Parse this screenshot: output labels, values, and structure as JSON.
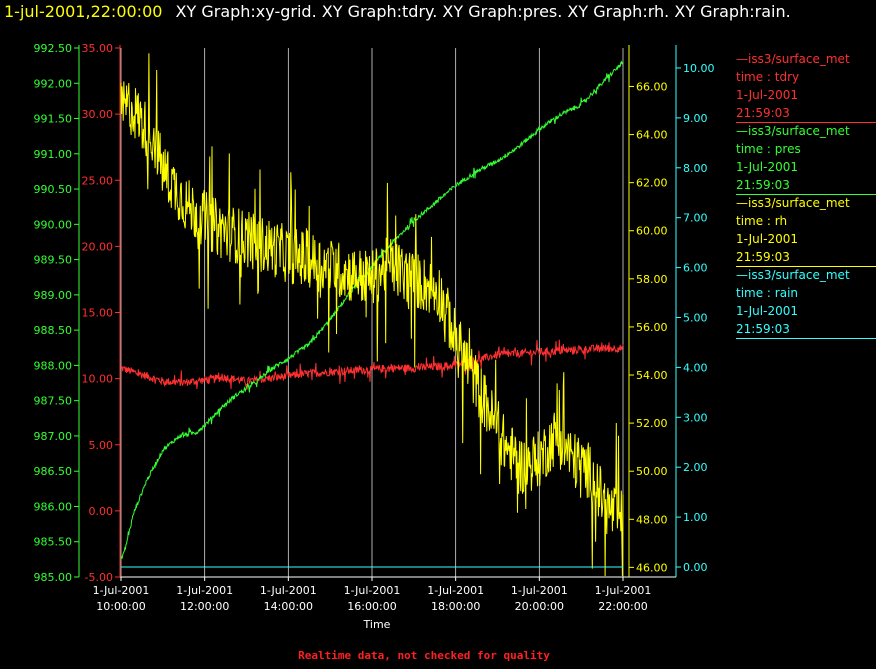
{
  "header": {
    "timestamp": "1-jul-2001,22:00:00",
    "titles": "XY Graph:xy-grid.  XY Graph:tdry.  XY Graph:pres.  XY Graph:rh.  XY Graph:rain."
  },
  "footer": {
    "quality_note": "Realtime data, not checked for quality"
  },
  "colors": {
    "tdry": "#ff3030",
    "pres": "#33ff33",
    "rh": "#ffff00",
    "rain": "#33ffff",
    "grid": "#ffffff"
  },
  "legend": [
    {
      "station": "—iss3/surface_met",
      "label": "time : tdry",
      "date": "1-Jul-2001",
      "time": "21:59:03",
      "color": "#ff3030"
    },
    {
      "station": "—iss3/surface_met",
      "label": "time : pres",
      "date": "1-Jul-2001",
      "time": "21:59:03",
      "color": "#33ff33"
    },
    {
      "station": "—iss3/surface_met",
      "label": "time : rh",
      "date": "1-Jul-2001",
      "time": "21:59:03",
      "color": "#ffff00"
    },
    {
      "station": "—iss3/surface_met",
      "label": "time : rain",
      "date": "1-Jul-2001",
      "time": "21:59:03",
      "color": "#33ffff"
    }
  ],
  "chart_data": {
    "type": "line",
    "xlabel": "Time",
    "x_ticks": [
      {
        "date": "1-Jul-2001",
        "time": "10:00:00",
        "hour": 10
      },
      {
        "date": "1-Jul-2001",
        "time": "12:00:00",
        "hour": 12
      },
      {
        "date": "1-Jul-2001",
        "time": "14:00:00",
        "hour": 14
      },
      {
        "date": "1-Jul-2001",
        "time": "16:00:00",
        "hour": 16
      },
      {
        "date": "1-Jul-2001",
        "time": "18:00:00",
        "hour": 18
      },
      {
        "date": "1-Jul-2001",
        "time": "20:00:00",
        "hour": 20
      },
      {
        "date": "1-Jul-2001",
        "time": "22:00:00",
        "hour": 22
      }
    ],
    "xlim": [
      10,
      22
    ],
    "grid": true,
    "axes": [
      {
        "id": "pres",
        "side": "left",
        "color": "#33ff33",
        "ylim": [
          985.0,
          992.5
        ],
        "ticks": [
          "985.00",
          "985.50",
          "986.00",
          "986.50",
          "987.00",
          "987.50",
          "988.00",
          "988.50",
          "989.00",
          "989.50",
          "990.00",
          "990.50",
          "991.00",
          "991.50",
          "992.00",
          "992.50"
        ]
      },
      {
        "id": "tdry",
        "side": "left",
        "color": "#ff3030",
        "ylim": [
          -5.0,
          35.0
        ],
        "ticks": [
          "-5.00",
          "0.00",
          "5.00",
          "10.00",
          "15.00",
          "20.00",
          "25.00",
          "30.00",
          "35.00"
        ]
      },
      {
        "id": "rh",
        "side": "right",
        "color": "#ffff00",
        "ylim": [
          45.6,
          67.6
        ],
        "ticks": [
          "46.00",
          "48.00",
          "50.00",
          "52.00",
          "54.00",
          "56.00",
          "58.00",
          "60.00",
          "62.00",
          "64.00",
          "66.00"
        ]
      },
      {
        "id": "rain",
        "side": "right",
        "color": "#33ffff",
        "ylim": [
          -0.2,
          10.4
        ],
        "ticks": [
          "0.00",
          "1.00",
          "2.00",
          "3.00",
          "4.00",
          "5.00",
          "6.00",
          "7.00",
          "8.00",
          "9.00",
          "10.00"
        ]
      }
    ],
    "series": [
      {
        "id": "tdry",
        "axis": "tdry",
        "color": "#ff3030",
        "x": [
          10.0,
          10.5,
          11.0,
          11.5,
          12.0,
          12.5,
          13.0,
          13.5,
          14.0,
          14.5,
          15.0,
          15.5,
          16.0,
          16.5,
          17.0,
          17.5,
          18.0,
          18.5,
          19.0,
          19.5,
          20.0,
          20.5,
          21.0,
          21.5,
          22.0
        ],
        "y": [
          10.8,
          10.3,
          9.8,
          9.7,
          9.9,
          10.1,
          9.8,
          10.0,
          10.2,
          10.4,
          10.5,
          10.6,
          10.7,
          10.8,
          10.8,
          10.9,
          11.0,
          11.4,
          11.8,
          11.9,
          12.0,
          12.1,
          12.2,
          12.3,
          12.3
        ],
        "noise": 0.3
      },
      {
        "id": "pres",
        "axis": "pres",
        "color": "#33ff33",
        "x": [
          10.0,
          10.1,
          10.3,
          10.6,
          11.0,
          11.4,
          11.8,
          12.0,
          12.4,
          12.8,
          13.2,
          13.6,
          14.0,
          14.5,
          15.0,
          15.5,
          16.0,
          16.5,
          17.0,
          17.5,
          18.0,
          18.5,
          19.0,
          19.5,
          20.0,
          20.5,
          21.0,
          21.5,
          22.0
        ],
        "y": [
          985.25,
          985.4,
          985.9,
          986.35,
          986.8,
          987.0,
          987.05,
          987.15,
          987.4,
          987.6,
          987.75,
          987.95,
          988.1,
          988.3,
          988.65,
          989.05,
          989.4,
          989.75,
          990.05,
          990.3,
          990.55,
          990.75,
          990.9,
          991.1,
          991.35,
          991.55,
          991.7,
          992.0,
          992.3
        ],
        "noise": 0.03
      },
      {
        "id": "rh",
        "axis": "rh",
        "color": "#ffff00",
        "x": [
          10.0,
          10.2,
          10.4,
          10.6,
          10.8,
          11.0,
          11.3,
          11.6,
          12.0,
          12.4,
          12.8,
          13.2,
          13.6,
          14.0,
          14.5,
          15.0,
          15.5,
          16.0,
          16.4,
          16.8,
          17.2,
          17.6,
          18.0,
          18.4,
          18.8,
          19.2,
          19.6,
          20.0,
          20.4,
          20.8,
          21.2,
          21.6,
          22.0
        ],
        "y": [
          65.0,
          65.2,
          64.8,
          64.2,
          63.8,
          62.5,
          61.8,
          61.0,
          60.5,
          60.0,
          59.8,
          59.5,
          59.3,
          59.0,
          58.8,
          58.5,
          58.2,
          58.0,
          58.6,
          58.2,
          57.8,
          57.5,
          55.5,
          54.0,
          52.5,
          51.0,
          50.2,
          50.5,
          51.5,
          50.5,
          50.0,
          48.5,
          48.0
        ],
        "noise": 1.2
      },
      {
        "id": "rain",
        "axis": "rain",
        "color": "#33ffff",
        "x": [
          10.0,
          22.0
        ],
        "y": [
          0.0,
          0.0
        ],
        "noise": 0
      }
    ]
  }
}
